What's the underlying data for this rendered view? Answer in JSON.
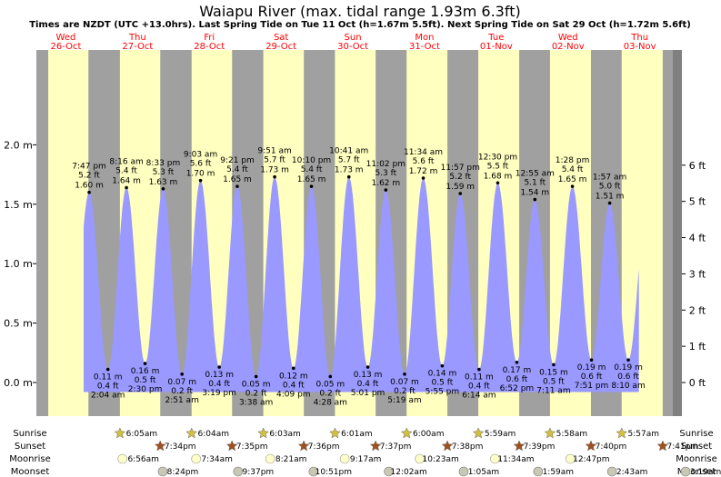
{
  "chart_data": {
    "type": "area",
    "title": "Waiapu River (max. tidal range 1.93m 6.3ft)",
    "subtitle": "Times are NZDT (UTC +13.0hrs). Last Spring Tide on Tue 11 Oct (h=1.67m 5.5ft). Next Spring Tide on Sat 29 Oct (h=1.72m 5.6ft)",
    "ylim": [
      -0.2,
      2.1
    ],
    "y_ticks_m": [
      "2.0 m",
      "1.5 m",
      "1.0 m",
      "0.5 m",
      "0.0 m"
    ],
    "y_ticks_ft": [
      "6 ft",
      "5 ft",
      "4 ft",
      "3 ft",
      "2 ft",
      "1 ft",
      "0 ft"
    ],
    "days": [
      {
        "dow": "Wed",
        "date": "26-Oct"
      },
      {
        "dow": "Thu",
        "date": "27-Oct"
      },
      {
        "dow": "Fri",
        "date": "28-Oct"
      },
      {
        "dow": "Sat",
        "date": "29-Oct"
      },
      {
        "dow": "Sun",
        "date": "30-Oct"
      },
      {
        "dow": "Mon",
        "date": "31-Oct"
      },
      {
        "dow": "Tue",
        "date": "01-Nov"
      },
      {
        "dow": "Wed",
        "date": "02-Nov"
      },
      {
        "dow": "Thu",
        "date": "03-Nov"
      }
    ],
    "tides": [
      {
        "kind": "high",
        "time": "7:47 pm",
        "m": 1.6,
        "ft": "5.2 ft",
        "m_label": "1.60 m"
      },
      {
        "kind": "low",
        "time": "2:04 am",
        "m": 0.11,
        "ft": "0.4 ft",
        "m_label": "0.11 m"
      },
      {
        "kind": "high",
        "time": "8:16 am",
        "m": 1.64,
        "ft": "5.4 ft",
        "m_label": "1.64 m"
      },
      {
        "kind": "low",
        "time": "2:30 pm",
        "m": 0.16,
        "ft": "0.5 ft",
        "m_label": "0.16 m"
      },
      {
        "kind": "high",
        "time": "8:33 pm",
        "m": 1.63,
        "ft": "5.3 ft",
        "m_label": "1.63 m"
      },
      {
        "kind": "low",
        "time": "2:51 am",
        "m": 0.07,
        "ft": "0.2 ft",
        "m_label": "0.07 m"
      },
      {
        "kind": "high",
        "time": "9:03 am",
        "m": 1.7,
        "ft": "5.6 ft",
        "m_label": "1.70 m"
      },
      {
        "kind": "low",
        "time": "3:19 pm",
        "m": 0.13,
        "ft": "0.4 ft",
        "m_label": "0.13 m"
      },
      {
        "kind": "high",
        "time": "9:21 pm",
        "m": 1.65,
        "ft": "5.4 ft",
        "m_label": "1.65 m"
      },
      {
        "kind": "low",
        "time": "3:38 am",
        "m": 0.05,
        "ft": "0.2 ft",
        "m_label": "0.05 m"
      },
      {
        "kind": "high",
        "time": "9:51 am",
        "m": 1.73,
        "ft": "5.7 ft",
        "m_label": "1.73 m"
      },
      {
        "kind": "low",
        "time": "4:09 pm",
        "m": 0.12,
        "ft": "0.4 ft",
        "m_label": "0.12 m"
      },
      {
        "kind": "high",
        "time": "10:10 pm",
        "m": 1.65,
        "ft": "5.4 ft",
        "m_label": "1.65 m"
      },
      {
        "kind": "low",
        "time": "4:28 am",
        "m": 0.05,
        "ft": "0.2 ft",
        "m_label": "0.05 m"
      },
      {
        "kind": "high",
        "time": "10:41 am",
        "m": 1.73,
        "ft": "5.7 ft",
        "m_label": "1.73 m"
      },
      {
        "kind": "low",
        "time": "5:01 pm",
        "m": 0.13,
        "ft": "0.4 ft",
        "m_label": "0.13 m"
      },
      {
        "kind": "high",
        "time": "11:02 pm",
        "m": 1.62,
        "ft": "5.3 ft",
        "m_label": "1.62 m"
      },
      {
        "kind": "low",
        "time": "5:19 am",
        "m": 0.07,
        "ft": "0.2 ft",
        "m_label": "0.07 m"
      },
      {
        "kind": "high",
        "time": "11:34 am",
        "m": 1.72,
        "ft": "5.6 ft",
        "m_label": "1.72 m"
      },
      {
        "kind": "low",
        "time": "5:55 pm",
        "m": 0.14,
        "ft": "0.5 ft",
        "m_label": "0.14 m"
      },
      {
        "kind": "high",
        "time": "11:57 pm",
        "m": 1.59,
        "ft": "5.2 ft",
        "m_label": "1.59 m"
      },
      {
        "kind": "low",
        "time": "6:14 am",
        "m": 0.11,
        "ft": "0.4 ft",
        "m_label": "0.11 m"
      },
      {
        "kind": "high",
        "time": "12:30 pm",
        "m": 1.68,
        "ft": "5.5 ft",
        "m_label": "1.68 m"
      },
      {
        "kind": "low",
        "time": "6:52 pm",
        "m": 0.17,
        "ft": "0.6 ft",
        "m_label": "0.17 m"
      },
      {
        "kind": "high",
        "time": "12:55 am",
        "m": 1.54,
        "ft": "5.1 ft",
        "m_label": "1.54 m"
      },
      {
        "kind": "low",
        "time": "7:11 am",
        "m": 0.15,
        "ft": "0.5 ft",
        "m_label": "0.15 m"
      },
      {
        "kind": "high",
        "time": "1:28 pm",
        "m": 1.65,
        "ft": "5.4 ft",
        "m_label": "1.65 m"
      },
      {
        "kind": "low",
        "time": "7:51 pm",
        "m": 0.19,
        "ft": "0.6 ft",
        "m_label": "0.19 m"
      },
      {
        "kind": "high",
        "time": "1:57 am",
        "m": 1.51,
        "ft": "5.0 ft",
        "m_label": "1.51 m"
      },
      {
        "kind": "low",
        "time": "8:10 am",
        "m": 0.19,
        "ft": "0.6 ft",
        "m_label": "0.19 m"
      }
    ],
    "rows": {
      "sunrise_label": "Sunrise",
      "sunset_label": "Sunset",
      "moonrise_label": "Moonrise",
      "moonset_label": "Moonset",
      "sunrise": [
        "6:05am",
        "6:04am",
        "6:03am",
        "6:01am",
        "6:00am",
        "5:59am",
        "5:58am",
        "5:57am"
      ],
      "sunset": [
        "7:34pm",
        "7:35pm",
        "7:36pm",
        "7:37pm",
        "7:38pm",
        "7:39pm",
        "7:40pm",
        "7:41pm"
      ],
      "moonrise": [
        "6:56am",
        "7:34am",
        "8:21am",
        "9:17am",
        "10:23am",
        "11:34am",
        "12:47pm"
      ],
      "moonset": [
        "8:24pm",
        "9:37pm",
        "10:51pm",
        "12:02am",
        "1:05am",
        "1:59am",
        "2:43am",
        "3:19am"
      ]
    },
    "colors": {
      "day_band": "#ffffc0",
      "night_band": "#a0a0a0",
      "water": "#9999ff",
      "day_label": "#ff0000",
      "sun_star": "#d4c040",
      "sunset_star": "#a05020",
      "moonrise_disc": "#ffffc8",
      "moonset_disc": "#c8c8b4"
    }
  }
}
